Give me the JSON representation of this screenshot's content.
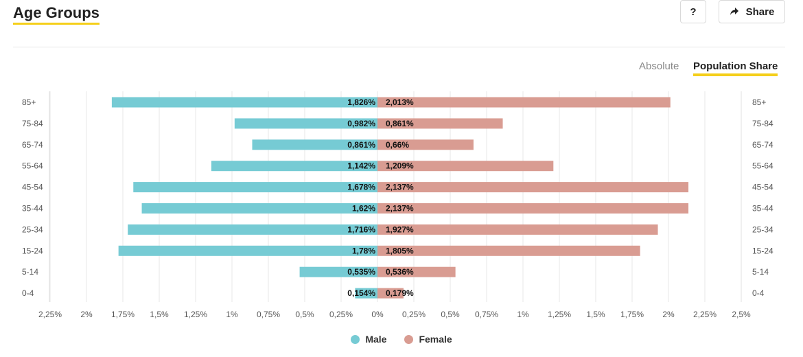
{
  "header": {
    "title": "Age Groups",
    "help_label": "?",
    "share_label": "Share",
    "share_icon": "share-arrow-icon"
  },
  "toggle": {
    "absolute_label": "Absolute",
    "population_share_label": "Population Share",
    "active": "population_share"
  },
  "colors": {
    "accent": "#f5cf1a",
    "male": "#76cbd4",
    "female": "#d99c92"
  },
  "chart_data": {
    "type": "bar",
    "orientation": "horizontal",
    "title": "Age Groups",
    "categories": [
      "85+",
      "75-84",
      "65-74",
      "55-64",
      "45-54",
      "35-44",
      "25-34",
      "15-24",
      "5-14",
      "0-4"
    ],
    "series": [
      {
        "name": "Male",
        "values": [
          1.826,
          0.982,
          0.861,
          1.142,
          1.678,
          1.62,
          1.716,
          1.78,
          0.535,
          0.154
        ],
        "labels": [
          "1,826%",
          "0,982%",
          "0,861%",
          "1,142%",
          "1,678%",
          "1,62%",
          "1,716%",
          "1,78%",
          "0,535%",
          "0,154%"
        ]
      },
      {
        "name": "Female",
        "values": [
          2.013,
          0.861,
          0.66,
          1.209,
          2.137,
          2.137,
          1.927,
          1.805,
          0.536,
          0.179
        ],
        "labels": [
          "2,013%",
          "0,861%",
          "0,66%",
          "1,209%",
          "2,137%",
          "2,137%",
          "1,927%",
          "1,805%",
          "0,536%",
          "0,179%"
        ]
      }
    ],
    "x_ticks": [
      "2,25%",
      "2%",
      "1,75%",
      "1,5%",
      "1,25%",
      "1%",
      "0,75%",
      "0,5%",
      "0,25%",
      "0%",
      "0,25%",
      "0,5%",
      "0,75%",
      "1%",
      "1,25%",
      "1,5%",
      "1,75%",
      "2%",
      "2,25%",
      "2,5%"
    ],
    "xlim": [
      -2.25,
      2.5
    ],
    "xlabel": "",
    "ylabel": "",
    "grid": true,
    "legend_position": "bottom-center"
  }
}
